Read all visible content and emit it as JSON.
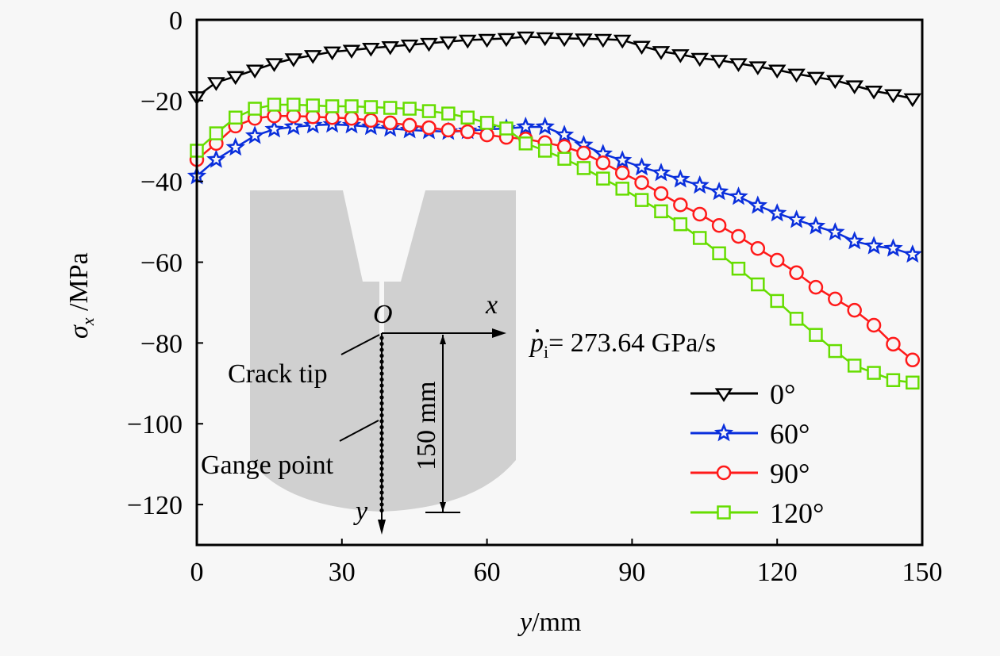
{
  "chart_data": {
    "type": "line",
    "title": "",
    "xlabel": "y/mm",
    "xlabel_parts": {
      "var": "y",
      "unit": "/mm"
    },
    "ylabel": "σx /MPa",
    "ylabel_parts": {
      "var": "σ",
      "sub": "x",
      "unit": " /MPa"
    },
    "xlim": [
      0,
      150
    ],
    "ylim": [
      -130,
      0
    ],
    "xticks": [
      0,
      30,
      60,
      90,
      120,
      150
    ],
    "xtick_labels": [
      "0",
      "30",
      "60",
      "90",
      "120",
      "150"
    ],
    "yticks": [
      0,
      -20,
      -40,
      -60,
      -80,
      -100,
      -120
    ],
    "ytick_labels": [
      "0",
      "−20",
      "−40",
      "−60",
      "−80",
      "−100",
      "−120"
    ],
    "grid": false,
    "legend_position": "bottom-right",
    "x": [
      0,
      4,
      8,
      12,
      16,
      20,
      24,
      28,
      32,
      36,
      40,
      44,
      48,
      52,
      56,
      60,
      64,
      68,
      72,
      76,
      80,
      84,
      88,
      92,
      96,
      100,
      104,
      108,
      112,
      116,
      120,
      124,
      128,
      132,
      136,
      140,
      144,
      148
    ],
    "series": [
      {
        "name": "0°",
        "color": "#000000",
        "marker": "triangle-down",
        "values": [
          -19.0,
          -15.5,
          -14.0,
          -12.4,
          -10.8,
          -9.6,
          -8.8,
          -7.9,
          -7.5,
          -7.0,
          -6.6,
          -6.2,
          -5.8,
          -5.4,
          -5.0,
          -4.8,
          -4.6,
          -4.2,
          -4.4,
          -4.6,
          -4.7,
          -4.8,
          -5.0,
          -6.5,
          -7.8,
          -8.6,
          -9.5,
          -10.0,
          -10.8,
          -11.6,
          -12.4,
          -13.4,
          -14.2,
          -15.0,
          -16.3,
          -17.6,
          -18.5,
          -19.5
        ]
      },
      {
        "name": "60°",
        "color": "#0a2fdc",
        "marker": "star",
        "values": [
          -38.7,
          -34.6,
          -31.6,
          -28.7,
          -27.1,
          -26.5,
          -26.1,
          -25.9,
          -26.1,
          -26.5,
          -26.9,
          -27.3,
          -27.5,
          -27.7,
          -27.5,
          -27.1,
          -26.9,
          -26.5,
          -26.5,
          -28.5,
          -31.0,
          -33.2,
          -34.8,
          -36.5,
          -37.9,
          -39.5,
          -41.0,
          -42.6,
          -43.8,
          -46.0,
          -47.9,
          -49.5,
          -51.1,
          -52.6,
          -54.8,
          -56.0,
          -56.6,
          -58.1
        ]
      },
      {
        "name": "90°",
        "color": "#ff1a1a",
        "marker": "circle",
        "values": [
          -34.6,
          -30.6,
          -26.3,
          -24.4,
          -23.8,
          -23.8,
          -24.0,
          -24.2,
          -24.4,
          -24.9,
          -25.5,
          -26.1,
          -26.7,
          -27.3,
          -27.7,
          -28.5,
          -29.1,
          -29.5,
          -30.4,
          -31.4,
          -33.0,
          -35.4,
          -37.9,
          -40.3,
          -43.0,
          -45.8,
          -48.1,
          -50.9,
          -53.6,
          -56.6,
          -59.5,
          -62.6,
          -66.2,
          -69.1,
          -71.9,
          -75.6,
          -80.3,
          -84.2
        ]
      },
      {
        "name": "120°",
        "color": "#66dd00",
        "marker": "square",
        "values": [
          -32.4,
          -28.1,
          -24.2,
          -22.0,
          -21.0,
          -21.0,
          -21.2,
          -21.4,
          -21.4,
          -21.6,
          -21.8,
          -22.0,
          -22.6,
          -23.2,
          -24.2,
          -25.5,
          -26.9,
          -30.6,
          -32.4,
          -34.4,
          -36.7,
          -39.3,
          -41.8,
          -44.6,
          -47.4,
          -50.6,
          -54.0,
          -57.8,
          -61.6,
          -65.5,
          -69.6,
          -74.0,
          -78.0,
          -82.0,
          -85.6,
          -87.4,
          -89.2,
          -89.8
        ]
      }
    ],
    "annotations": {
      "loading_rate": {
        "var": "p",
        "sub": "i",
        "text": "= 273.64 GPa/s"
      },
      "inset": {
        "origin_label": "O",
        "x_axis_label": "x",
        "y_axis_label": "y",
        "crack_tip_label": "Crack tip",
        "gauge_label": "Gange point",
        "dimension_label": "150 mm"
      }
    }
  }
}
